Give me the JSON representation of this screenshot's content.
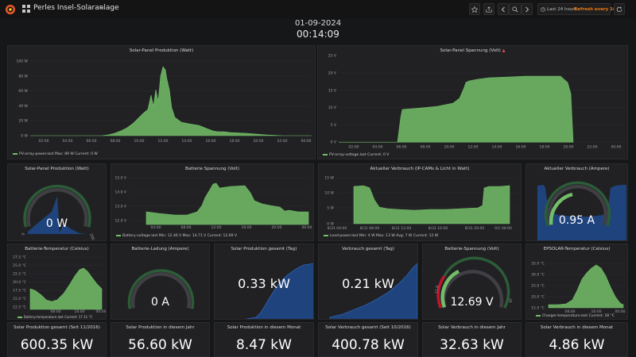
{
  "header": {
    "title": "Perles Insel-Solaranlage",
    "date": "01-09-2024",
    "time": "00:14:09",
    "time_range": "Last 24 hours",
    "refresh": "Refresh every 10s"
  },
  "colors": {
    "background": "#161719",
    "panel": "#212124",
    "series_green": "#73bf69",
    "sparkline_blue": "#1f60c4",
    "threshold_red": "#c4162a",
    "accent_orange": "#eb7b18"
  },
  "panels": {
    "solar_production_watt": {
      "title": "Solar-Panel Produktion (Watt)",
      "y_ticks": [
        "100 W",
        "80 W",
        "60 W",
        "40 W",
        "20 W",
        "0 W"
      ],
      "x_ticks": [
        "02:00",
        "04:00",
        "06:00",
        "08:00",
        "10:00",
        "12:00",
        "14:00",
        "16:00",
        "18:00",
        "20:00",
        "22:00",
        "00:00"
      ],
      "legend": "PV-array-power.last   Max: 89 W   Current: 0 W"
    },
    "solar_voltage": {
      "title": "Solar-Panel Spannung (Volt)",
      "y_ticks": [
        "25 V",
        "20 V",
        "15 V",
        "10 V",
        "5 V",
        "0 V"
      ],
      "x_ticks": [
        "02:00",
        "04:00",
        "06:00",
        "08:00",
        "10:00",
        "12:00",
        "14:00",
        "16:00",
        "18:00",
        "20:00",
        "22:00",
        "00:00"
      ],
      "legend": "PV-array-voltage.last   Current: 0 V"
    },
    "solar_gauge": {
      "title": "Solar-Panel Produktion (Watt)",
      "value": "0 W",
      "min": "0",
      "max": "200"
    },
    "battery_voltage": {
      "title": "Batterie Spannung (Volt)",
      "y_ticks": [
        "15.0 V",
        "14.0 V",
        "13.0 V",
        "12.0 V"
      ],
      "x_ticks": [
        "04:00",
        "08:00",
        "12:00",
        "16:00",
        "20:00",
        "00:00"
      ],
      "legend": "Battery-voltage.last   Min: 12.46 V   Max: 14.71 V   Current: 12.69 V"
    },
    "current_consumption": {
      "title": "Aktueller Verbrauch (IP-CAMs & Licht in Watt)",
      "y_ticks": [
        "15 W",
        "10 W",
        "5 W",
        "0 W"
      ],
      "x_ticks": [
        "8/31 04:00",
        "8/31 08:00",
        "8/31 12:00",
        "8/31 16:00",
        "8/31 20:00",
        "9/1 00:00"
      ],
      "legend": "Load-power.last   Min: 4 W   Max: 13 W   Avg: 7 W   Current: 12 W"
    },
    "consumption_ampere": {
      "title": "Aktueller Verbrauch (Ampere)",
      "value": "0.95 A"
    },
    "battery_temp": {
      "title": "Batterie-Temperatur (Celsius)",
      "y_ticks": [
        "27.5 °C",
        "25.0 °C",
        "22.5 °C",
        "20.0 °C",
        "17.5 °C",
        "15.0 °C",
        "12.5 °C"
      ],
      "x_ticks": [
        "08:00",
        "16:00",
        "00:00"
      ],
      "legend": "Battery-temperature.last   Current: 17.11 °C"
    },
    "battery_charge": {
      "title": "Batterie-Ladung (Ampere)",
      "value": "0 A"
    },
    "solar_total_day": {
      "title": "Solar Produktion gesamt (Tag)",
      "value": "0.33 kW"
    },
    "consumption_total_day": {
      "title": "Verbrauch gesamt (Tag)",
      "value": "0.21 kW"
    },
    "battery_voltage_gauge": {
      "title": "Batterie-Spannung (Volt)",
      "value": "12.69 V",
      "min": "11.6",
      "max": "16"
    },
    "epsolar_temp": {
      "title": "EPSOLAR-Temperatur (Celsius)",
      "y_ticks": [
        "35.0 °C",
        "30.0 °C",
        "25.0 °C",
        "20.0 °C",
        "15.0 °C"
      ],
      "x_ticks": [
        "08:00",
        "16:00",
        "00:00"
      ],
      "legend": "Charger-temperature.last   Current: 18 °C"
    },
    "totals": [
      {
        "title": "Solar Produktion gesamt (Seit 11/2016)",
        "value": "600.35 kW"
      },
      {
        "title": "Solar Produktion in diesem Jahr",
        "value": "56.60 kW"
      },
      {
        "title": "Solar Produktion in diesem Monat",
        "value": "8.47 kW"
      },
      {
        "title": "Solar Verbrauch gesamt (Seit 10/2016)",
        "value": "400.78 kW"
      },
      {
        "title": "Solar Verbrauch in diesem Jahr",
        "value": "32.63 kW"
      },
      {
        "title": "Solar Verbrauch in diesem Monat",
        "value": "4.86 kW"
      }
    ]
  }
}
